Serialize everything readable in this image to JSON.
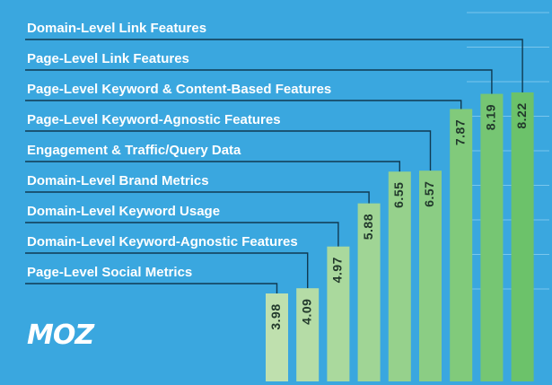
{
  "chart_data": {
    "type": "bar",
    "orientation": "vertical",
    "categories": [
      "Page-Level Social Metrics",
      "Domain-Level Keyword-Agnostic Features",
      "Domain-Level Keyword Usage",
      "Domain-Level Brand Metrics",
      "Engagement & Traffic/Query Data",
      "Page-Level Keyword-Agnostic Features",
      "Page-Level Keyword & Content-Based Features",
      "Page-Level Link Features",
      "Domain-Level Link Features"
    ],
    "values": [
      3.98,
      4.09,
      4.97,
      5.88,
      6.55,
      6.57,
      7.87,
      8.19,
      8.22
    ],
    "value_labels": [
      "3.98",
      "4.09",
      "4.97",
      "5.88",
      "6.55",
      "6.57",
      "7.87",
      "8.19",
      "8.22"
    ],
    "title": "",
    "xlabel": "",
    "ylabel": "",
    "ylim": [
      0,
      8.5
    ],
    "grid": true,
    "legend": "none",
    "colors": {
      "background": "#3aa7df",
      "bar_light": "#bfe0ae",
      "bar_dark": "#6cc26a",
      "label_text": "#ffffff",
      "value_text": "#22392c",
      "leader_line": "#103a52"
    }
  },
  "brand": {
    "logo_text": "MOZ"
  }
}
